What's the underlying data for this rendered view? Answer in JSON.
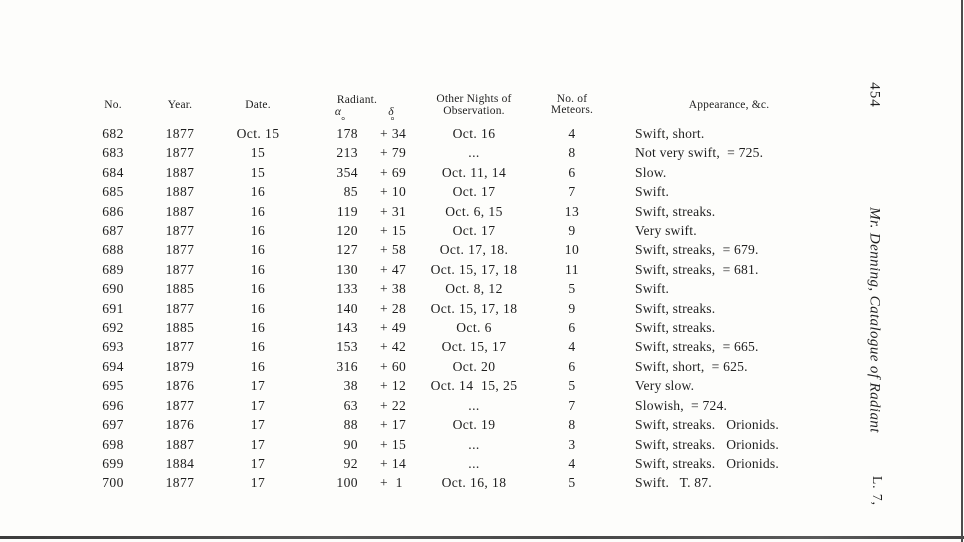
{
  "page": {
    "page_number": "454",
    "running_title": "Mr. Denning, Catalogue of Radiant",
    "signature": "L. 7,"
  },
  "table": {
    "degree_symbol": "°",
    "headers": {
      "no": "No.",
      "year": "Year.",
      "date": "Date.",
      "radiant": "Radiant.",
      "alpha": "α",
      "delta": "δ",
      "other_nights": "Other Nights of Observation.",
      "meteors_line1": "No. of",
      "meteors_line2": "Meteors.",
      "appearance": "Appearance, &c."
    },
    "rows": [
      {
        "no": "682",
        "year": "1877",
        "date": "Oct. 15",
        "alpha": "178",
        "delta": "+ 34",
        "deg": true,
        "other": "Oct. 16",
        "meteors": "4",
        "appearance": "Swift, short."
      },
      {
        "no": "683",
        "year": "1877",
        "date": "15",
        "alpha": "213",
        "delta": "+ 79",
        "other": "...",
        "meteors": "8",
        "appearance": "Not very swift,  = 725."
      },
      {
        "no": "684",
        "year": "1887",
        "date": "15",
        "alpha": "354",
        "delta": "+ 69",
        "other": "Oct. 11, 14",
        "meteors": "6",
        "appearance": "Slow."
      },
      {
        "no": "685",
        "year": "1887",
        "date": "16",
        "alpha": "85",
        "delta": "+ 10",
        "other": "Oct. 17",
        "meteors": "7",
        "appearance": "Swift."
      },
      {
        "no": "686",
        "year": "1887",
        "date": "16",
        "alpha": "119",
        "delta": "+ 31",
        "other": "Oct. 6, 15",
        "meteors": "13",
        "appearance": "Swift, streaks."
      },
      {
        "no": "687",
        "year": "1877",
        "date": "16",
        "alpha": "120",
        "delta": "+ 15",
        "other": "Oct. 17",
        "meteors": "9",
        "appearance": "Very swift."
      },
      {
        "no": "688",
        "year": "1877",
        "date": "16",
        "alpha": "127",
        "delta": "+ 58",
        "other": "Oct. 17, 18.",
        "meteors": "10",
        "appearance": "Swift, streaks,  = 679."
      },
      {
        "no": "689",
        "year": "1877",
        "date": "16",
        "alpha": "130",
        "delta": "+ 47",
        "other": "Oct. 15, 17, 18",
        "meteors": "11",
        "appearance": "Swift, streaks,  = 681."
      },
      {
        "no": "690",
        "year": "1885",
        "date": "16",
        "alpha": "133",
        "delta": "+ 38",
        "other": "Oct. 8, 12",
        "meteors": "5",
        "appearance": "Swift."
      },
      {
        "no": "691",
        "year": "1877",
        "date": "16",
        "alpha": "140",
        "delta": "+ 28",
        "other": "Oct. 15, 17, 18",
        "meteors": "9",
        "appearance": "Swift, streaks."
      },
      {
        "no": "692",
        "year": "1885",
        "date": "16",
        "alpha": "143",
        "delta": "+ 49",
        "other": "Oct. 6",
        "meteors": "6",
        "appearance": "Swift, streaks."
      },
      {
        "no": "693",
        "year": "1877",
        "date": "16",
        "alpha": "153",
        "delta": "+ 42",
        "other": "Oct. 15, 17",
        "meteors": "4",
        "appearance": "Swift, streaks,  = 665."
      },
      {
        "no": "694",
        "year": "1879",
        "date": "16",
        "alpha": "316",
        "delta": "+ 60",
        "other": "Oct. 20",
        "meteors": "6",
        "appearance": "Swift, short,  = 625."
      },
      {
        "no": "695",
        "year": "1876",
        "date": "17",
        "alpha": "38",
        "delta": "+ 12",
        "other": "Oct. 14  15, 25",
        "meteors": "5",
        "appearance": "Very slow."
      },
      {
        "no": "696",
        "year": "1877",
        "date": "17",
        "alpha": "63",
        "delta": "+ 22",
        "other": "...",
        "meteors": "7",
        "appearance": "Slowish,  = 724."
      },
      {
        "no": "697",
        "year": "1876",
        "date": "17",
        "alpha": "88",
        "delta": "+ 17",
        "other": "Oct. 19",
        "meteors": "8",
        "appearance": "Swift, streaks.   Orionids."
      },
      {
        "no": "698",
        "year": "1887",
        "date": "17",
        "alpha": "90",
        "delta": "+ 15",
        "other": "...",
        "meteors": "3",
        "appearance": "Swift, streaks.   Orionids."
      },
      {
        "no": "699",
        "year": "1884",
        "date": "17",
        "alpha": "92",
        "delta": "+ 14",
        "other": "...",
        "meteors": "4",
        "appearance": "Swift, streaks.   Orionids."
      },
      {
        "no": "700",
        "year": "1877",
        "date": "17",
        "alpha": "100",
        "delta": "+  1",
        "other": "Oct. 16, 18",
        "meteors": "5",
        "appearance": "Swift.   T. 87."
      }
    ]
  }
}
